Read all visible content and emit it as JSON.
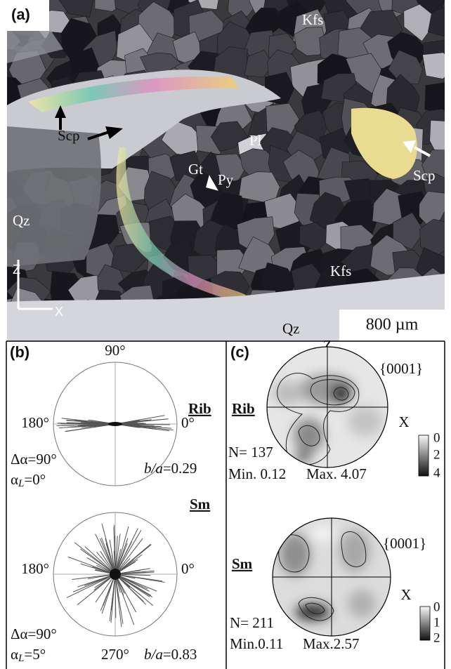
{
  "panel_a": {
    "label": "(a)",
    "annotations": [
      "Kfs",
      "Scp",
      "Scp",
      "Pl",
      "Gt",
      "Py",
      "Qz",
      "Kfs",
      "Qz"
    ],
    "axis_z": "Z",
    "axis_x": "X",
    "scale_bar": "800 µm"
  },
  "panel_b": {
    "label": "(b)",
    "rib": {
      "name": "Rib",
      "top_angle": "90°",
      "left_angle": "180°",
      "right_angle": "0°",
      "delta_alpha": "Δα=90°",
      "alpha_symbol": "α",
      "alpha_subscript": "L",
      "alpha_value": "=0°",
      "ratio_symbol": "b/a",
      "ratio_value": "=0.29"
    },
    "sm": {
      "name": "Sm",
      "left_angle": "180°",
      "right_angle": "0°",
      "bottom_angle": "270°",
      "delta_alpha": "Δα=90°",
      "alpha_symbol": "α",
      "alpha_subscript": "L",
      "alpha_value": "=5°",
      "ratio_symbol": "b/a",
      "ratio_value": "=0.83"
    }
  },
  "panel_c": {
    "label": "(c)",
    "axis_z": "Z",
    "rib": {
      "name": "Rib",
      "plane": "{0001}",
      "axis_x": "X",
      "scale_labels": [
        "0",
        "2",
        "4"
      ],
      "n": "N= 137",
      "min": "Min. 0.12",
      "max": "Max. 4.07"
    },
    "sm": {
      "name": "Sm",
      "plane": "{0001}",
      "axis_x": "X",
      "scale_labels": [
        "0",
        "1",
        "2"
      ],
      "n": "N= 211",
      "min": "Min.0.11",
      "max": "Max.2.57"
    }
  }
}
